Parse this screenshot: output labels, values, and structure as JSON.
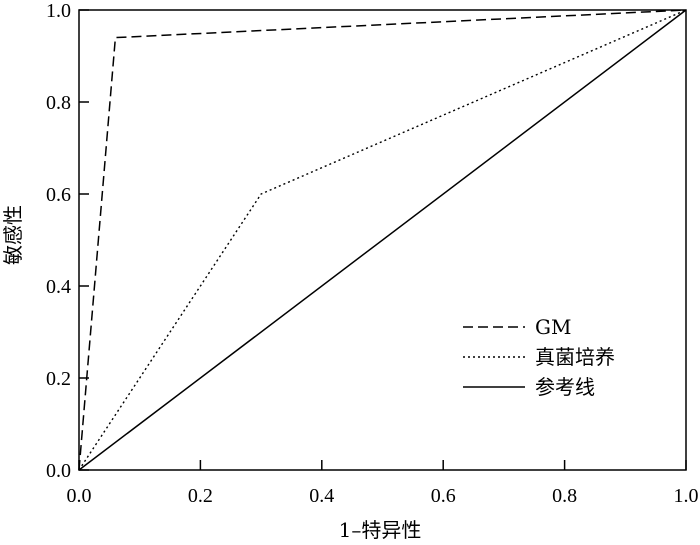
{
  "chart_data": {
    "type": "line",
    "title": "",
    "xlabel": "1–特异性",
    "ylabel": "敏感性",
    "xlim": [
      0.0,
      1.0
    ],
    "ylim": [
      0.0,
      1.0
    ],
    "x_ticks": [
      "0.0",
      "0.2",
      "0.4",
      "0.6",
      "0.8",
      "1.0"
    ],
    "y_ticks": [
      "0.0",
      "0.2",
      "0.4",
      "0.6",
      "0.8",
      "1.0"
    ],
    "grid": false,
    "legend_position": "bottom-right",
    "series": [
      {
        "name": "GM",
        "style": "dashed",
        "color": "#000000",
        "x": [
          0.0,
          0.06,
          1.0
        ],
        "y": [
          0.0,
          0.94,
          1.0
        ]
      },
      {
        "name": "真菌培养",
        "style": "dotted",
        "color": "#000000",
        "x": [
          0.0,
          0.3,
          1.0
        ],
        "y": [
          0.0,
          0.6,
          1.0
        ]
      },
      {
        "name": "参考线",
        "style": "solid",
        "color": "#000000",
        "x": [
          0.0,
          1.0
        ],
        "y": [
          0.0,
          1.0
        ]
      }
    ]
  }
}
